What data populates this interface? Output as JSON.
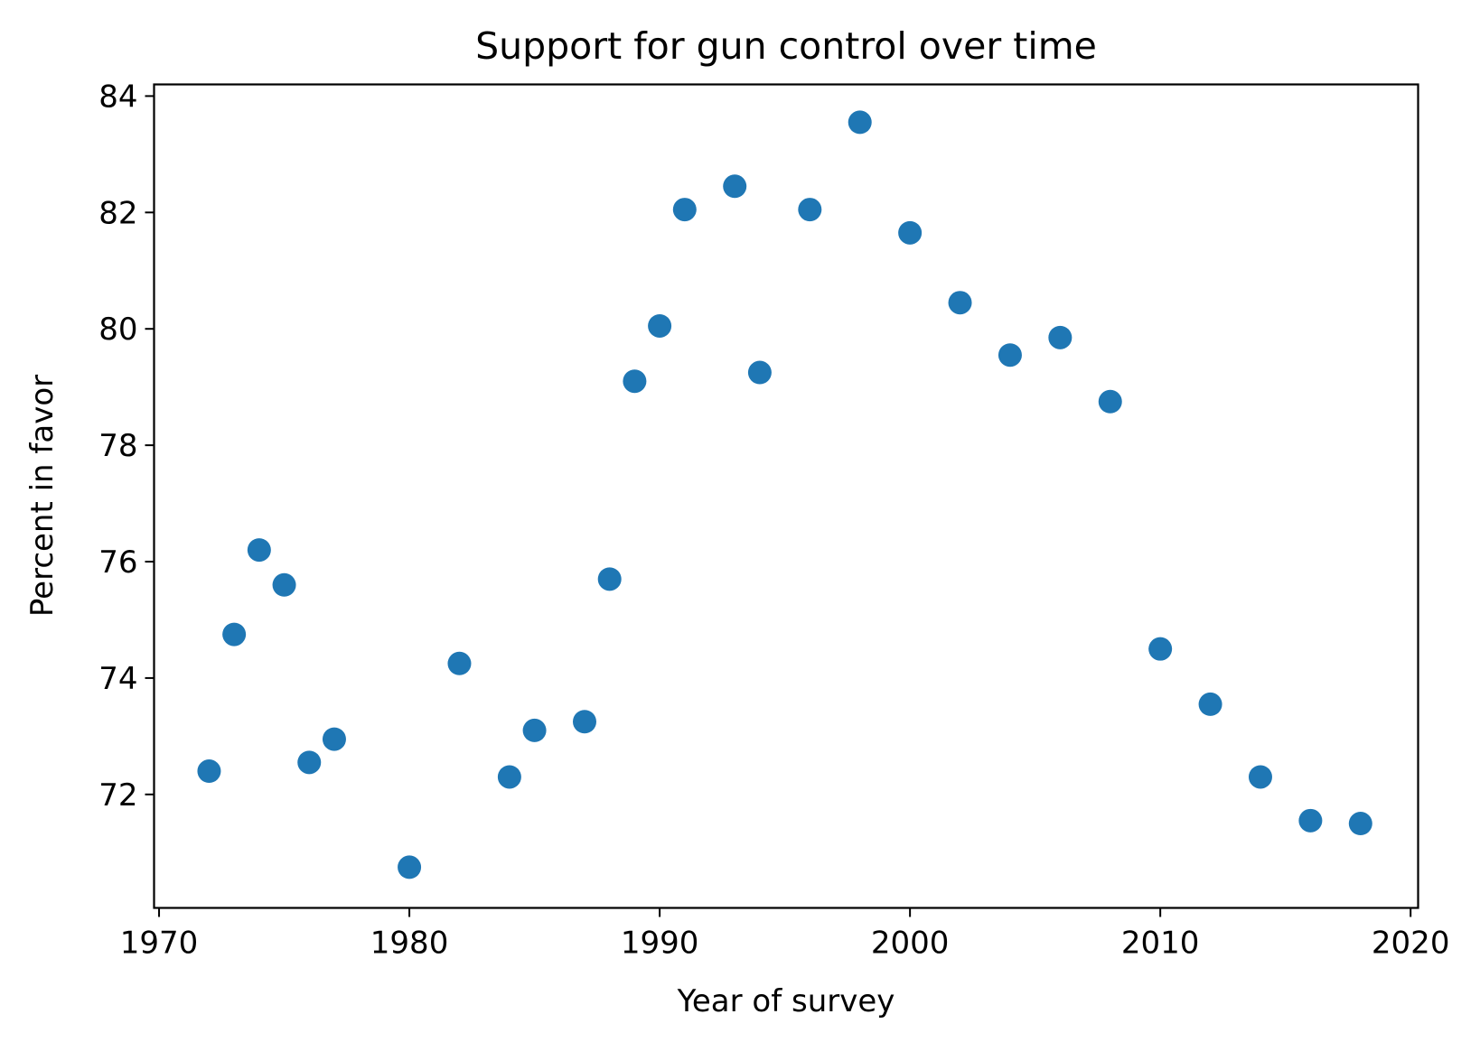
{
  "chart_data": {
    "type": "scatter",
    "title": "Support for gun control over time",
    "xlabel": "Year of survey",
    "ylabel": "Percent in favor",
    "xlim": [
      1969.8,
      2020.3
    ],
    "ylim": [
      70.05,
      84.2
    ],
    "xticks": [
      1970,
      1980,
      1990,
      2000,
      2010,
      2020
    ],
    "yticks": [
      72,
      74,
      76,
      78,
      80,
      82,
      84
    ],
    "grid": false,
    "marker_color": "#1f77b4",
    "series": [
      {
        "x": [
          1972,
          1973,
          1974,
          1975,
          1976,
          1977,
          1980,
          1982,
          1984,
          1985,
          1987,
          1988,
          1989,
          1990,
          1991,
          1993,
          1994,
          1996,
          1998,
          2000,
          2002,
          2004,
          2006,
          2008,
          2010,
          2012,
          2014,
          2016,
          2018
        ],
        "y": [
          72.4,
          74.75,
          76.2,
          75.6,
          72.55,
          72.95,
          70.75,
          74.25,
          72.3,
          73.1,
          73.25,
          75.7,
          79.1,
          80.05,
          82.05,
          82.45,
          79.25,
          82.05,
          83.55,
          81.65,
          80.45,
          79.55,
          79.85,
          78.75,
          74.5,
          73.55,
          72.3,
          71.55,
          71.5
        ]
      }
    ]
  }
}
